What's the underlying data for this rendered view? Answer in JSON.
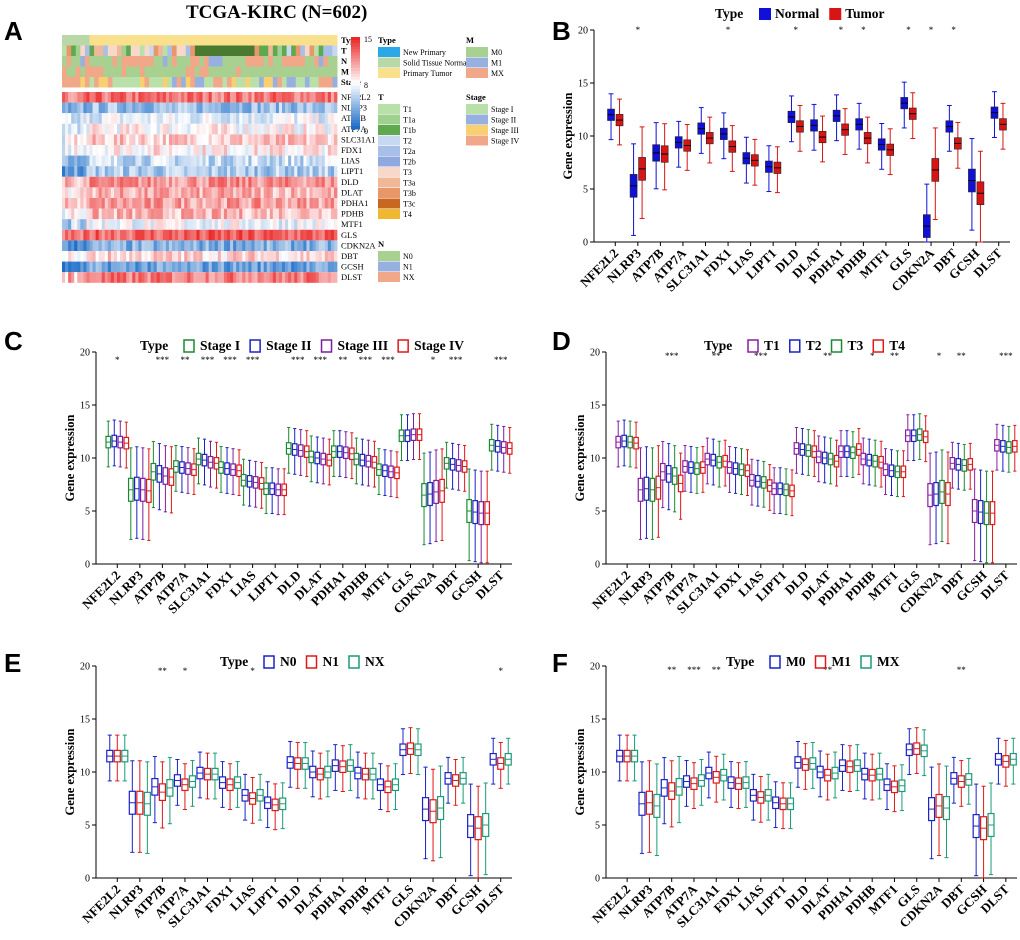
{
  "panel_labels": [
    "A",
    "B",
    "C",
    "D",
    "E",
    "F"
  ],
  "colors": {
    "Normal": "#1010d8",
    "Tumor": "#d81414",
    "Stage I": "#1a8a30",
    "Stage II": "#1a22c8",
    "Stage III": "#7a1fa0",
    "Stage IV": "#e01818",
    "T1": "#8a1fa0",
    "T2": "#1a22c8",
    "T3": "#1a8a30",
    "T4": "#e01818",
    "N0": "#1a22c8",
    "N1": "#e01818",
    "NX": "#1a9c78",
    "M0": "#1a22c8",
    "M1": "#e01818",
    "MX": "#1a9c78"
  },
  "heatmap": {
    "title": "TCGA-KIRC (N=602)",
    "annotation_rows": [
      "Type",
      "T",
      "N",
      "M",
      "Stage"
    ],
    "genes": [
      "NFE2L2",
      "NLRP3",
      "ATP7B",
      "ATP7A",
      "SLC31A1",
      "FDX1",
      "LIAS",
      "LIPT1",
      "DLD",
      "DLAT",
      "PDHA1",
      "PDHB",
      "MTF1",
      "GLS",
      "CDKN2A",
      "DBT",
      "GCSH",
      "DLST"
    ],
    "colorbar_ticks": [
      "15",
      "8",
      "0"
    ],
    "legend_groups": [
      {
        "title": "Type",
        "items": [
          {
            "label": "New Primary",
            "color": "#2aa8e8"
          },
          {
            "label": "Solid Tissue Normal",
            "color": "#b8d8a8"
          },
          {
            "label": "Primary Tumor",
            "color": "#f8e08c"
          }
        ]
      },
      {
        "title": "M",
        "items": [
          {
            "label": "M0",
            "color": "#a8d090"
          },
          {
            "label": "M1",
            "color": "#98b0e0"
          },
          {
            "label": "MX",
            "color": "#f0a888"
          }
        ]
      },
      {
        "title": "T",
        "items": [
          {
            "label": "T1",
            "color": "#b8e0a8"
          },
          {
            "label": "T1a",
            "color": "#a0d090"
          },
          {
            "label": "T1b",
            "color": "#60a850"
          },
          {
            "label": "T2",
            "color": "#c8d8f0"
          },
          {
            "label": "T2a",
            "color": "#a8c0e8"
          },
          {
            "label": "T2b",
            "color": "#90a8e0"
          },
          {
            "label": "T3",
            "color": "#f8d8c8"
          },
          {
            "label": "T3a",
            "color": "#f0b898"
          },
          {
            "label": "T3b",
            "color": "#e89868"
          },
          {
            "label": "T3c",
            "color": "#c86820"
          },
          {
            "label": "T4",
            "color": "#f0b830"
          }
        ]
      },
      {
        "title": "Stage",
        "items": [
          {
            "label": "Stage I",
            "color": "#b8e0a8"
          },
          {
            "label": "Stage II",
            "color": "#98b0e0"
          },
          {
            "label": "Stage III",
            "color": "#f8d070"
          },
          {
            "label": "Stage IV",
            "color": "#f0a888"
          }
        ]
      },
      {
        "title": "N",
        "items": [
          {
            "label": "N0",
            "color": "#a8d090"
          },
          {
            "label": "N1",
            "color": "#98b0e0"
          },
          {
            "label": "NX",
            "color": "#f0a888"
          }
        ]
      }
    ]
  },
  "chart_data": [
    {
      "panel": "B",
      "type": "box",
      "legend_title": "Type",
      "groups": [
        "Normal",
        "Tumor"
      ],
      "ylabel": "Gene expression",
      "ylim": [
        0,
        20
      ],
      "yticks": [
        0,
        5,
        10,
        15,
        20
      ],
      "categories": [
        "NFE2L2",
        "NLRP3",
        "ATP7B",
        "ATP7A",
        "SLC31A1",
        "FDX1",
        "LIAS",
        "LIPT1",
        "DLD",
        "DLAT",
        "PDHA1",
        "PDHB",
        "MTF1",
        "GLS",
        "CDKN2A",
        "DBT",
        "GCSH",
        "DLST"
      ],
      "significance": [
        "",
        "*",
        "",
        "",
        "",
        "*",
        "",
        "",
        "*",
        "",
        "*",
        "*",
        "",
        "*",
        "*",
        "*",
        "",
        ""
      ],
      "medians": [
        [
          12,
          11.5
        ],
        [
          5.3,
          6.9
        ],
        [
          8.4,
          8.3
        ],
        [
          9.4,
          9.1
        ],
        [
          10.7,
          9.8
        ],
        [
          10.2,
          9.0
        ],
        [
          7.9,
          7.7
        ],
        [
          7.1,
          7.0
        ],
        [
          11.8,
          10.9
        ],
        [
          11.0,
          9.9
        ],
        [
          11.9,
          10.6
        ],
        [
          11.1,
          9.8
        ],
        [
          9.2,
          8.7
        ],
        [
          13.1,
          12.1
        ],
        [
          1.5,
          6.8
        ],
        [
          10.9,
          9.3
        ],
        [
          5.8,
          4.6
        ],
        [
          12.2,
          11.1
        ]
      ]
    },
    {
      "panel": "C",
      "type": "box",
      "legend_title": "Type",
      "groups": [
        "Stage I",
        "Stage II",
        "Stage III",
        "Stage IV"
      ],
      "ylabel": "Gene expression",
      "ylim": [
        0,
        20
      ],
      "yticks": [
        0,
        5,
        10,
        15,
        20
      ],
      "categories": [
        "NFE2L2",
        "NLRP3",
        "ATP7B",
        "ATP7A",
        "SLC31A1",
        "FDX1",
        "LIAS",
        "LIPT1",
        "DLD",
        "DLAT",
        "PDHA1",
        "PDHB",
        "MTF1",
        "GLS",
        "CDKN2A",
        "DBT",
        "GCSH",
        "DLST"
      ],
      "significance": [
        "*",
        "",
        "***",
        "**",
        "***",
        "***",
        "***",
        "",
        "***",
        "***",
        "**",
        "***",
        "***",
        "",
        "*",
        "***",
        "",
        "***"
      ],
      "medians": [
        [
          11.5,
          11.6,
          11.5,
          11.4
        ],
        [
          7,
          7.1,
          7,
          6.9
        ],
        [
          8.7,
          8.5,
          8.3,
          8.2
        ],
        [
          9.2,
          9.1,
          9,
          8.9
        ],
        [
          9.9,
          9.8,
          9.6,
          9.5
        ],
        [
          9.1,
          9,
          8.9,
          8.8
        ],
        [
          7.9,
          7.8,
          7.7,
          7.6
        ],
        [
          7.1,
          7.1,
          7,
          7
        ],
        [
          10.9,
          10.8,
          10.7,
          10.6
        ],
        [
          10.1,
          10,
          9.9,
          9.8
        ],
        [
          10.6,
          10.6,
          10.5,
          10.4
        ],
        [
          9.9,
          9.8,
          9.7,
          9.6
        ],
        [
          8.9,
          8.8,
          8.7,
          8.6
        ],
        [
          12.1,
          12.1,
          12.2,
          12.2
        ],
        [
          6.5,
          6.6,
          6.8,
          6.9
        ],
        [
          9.5,
          9.4,
          9.3,
          9.2
        ],
        [
          5,
          4.9,
          4.8,
          4.8
        ],
        [
          11.2,
          11.1,
          11,
          10.9
        ]
      ]
    },
    {
      "panel": "D",
      "type": "box",
      "legend_title": "Type",
      "groups": [
        "T1",
        "T2",
        "T3",
        "T4"
      ],
      "ylabel": "Gene expression",
      "ylim": [
        0,
        20
      ],
      "yticks": [
        0,
        5,
        10,
        15,
        20
      ],
      "categories": [
        "NFE2L2",
        "NLRP3",
        "ATP7B",
        "ATP7A",
        "SLC31A1",
        "FDX1",
        "LIAS",
        "LIPT1",
        "DLD",
        "DLAT",
        "PDHA1",
        "PDHB",
        "MTF1",
        "GLS",
        "CDKN2A",
        "DBT",
        "GCSH",
        "DLST"
      ],
      "significance": [
        "",
        "",
        "***",
        "",
        "**",
        "",
        "***",
        "",
        "",
        "**",
        "",
        "*",
        "**",
        "",
        "*",
        "**",
        "",
        "***"
      ],
      "medians": [
        [
          11.5,
          11.6,
          11.5,
          11.4
        ],
        [
          7,
          7.1,
          7,
          7.2
        ],
        [
          8.7,
          8.5,
          8.3,
          7.6
        ],
        [
          9.2,
          9.1,
          9,
          9.1
        ],
        [
          9.9,
          9.8,
          9.6,
          9.7
        ],
        [
          9.1,
          9,
          8.9,
          8.8
        ],
        [
          7.9,
          7.8,
          7.7,
          7.4
        ],
        [
          7.1,
          7.1,
          7,
          6.9
        ],
        [
          10.9,
          10.8,
          10.7,
          10.6
        ],
        [
          10.1,
          10,
          9.9,
          9.7
        ],
        [
          10.6,
          10.6,
          10.5,
          10.8
        ],
        [
          9.9,
          9.8,
          9.7,
          9.6
        ],
        [
          8.9,
          8.8,
          8.7,
          8.7
        ],
        [
          12.1,
          12.1,
          12.2,
          12
        ],
        [
          6.5,
          6.6,
          6.8,
          6.6
        ],
        [
          9.5,
          9.4,
          9.3,
          9.4
        ],
        [
          5,
          4.9,
          4.8,
          4.8
        ],
        [
          11.2,
          11.1,
          11,
          11.1
        ]
      ]
    },
    {
      "panel": "E",
      "type": "box",
      "legend_title": "Type",
      "groups": [
        "N0",
        "N1",
        "NX"
      ],
      "ylabel": "Gene expression",
      "ylim": [
        0,
        20
      ],
      "yticks": [
        0,
        5,
        10,
        15,
        20
      ],
      "categories": [
        "NFE2L2",
        "NLRP3",
        "ATP7B",
        "ATP7A",
        "SLC31A1",
        "FDX1",
        "LIAS",
        "LIPT1",
        "DLD",
        "DLAT",
        "PDHA1",
        "PDHB",
        "MTF1",
        "GLS",
        "CDKN2A",
        "DBT",
        "GCSH",
        "DLST"
      ],
      "significance": [
        "",
        "",
        "**",
        "*",
        "",
        "",
        "*",
        "",
        "",
        "",
        "",
        "",
        "",
        "",
        "",
        "",
        "",
        "*"
      ],
      "medians": [
        [
          11.5,
          11.5,
          11.5
        ],
        [
          7.1,
          7.1,
          7
        ],
        [
          8.6,
          8.1,
          8.5
        ],
        [
          9.2,
          8.8,
          9.1
        ],
        [
          9.9,
          9.8,
          9.8
        ],
        [
          9,
          8.8,
          9
        ],
        [
          7.8,
          7.5,
          7.8
        ],
        [
          7.1,
          6.9,
          7
        ],
        [
          10.9,
          10.8,
          10.8
        ],
        [
          10,
          9.8,
          10
        ],
        [
          10.6,
          10.5,
          10.6
        ],
        [
          9.9,
          9.8,
          9.8
        ],
        [
          8.8,
          8.6,
          8.8
        ],
        [
          12.1,
          12.2,
          12.1
        ],
        [
          6.5,
          6.3,
          6.6
        ],
        [
          9.4,
          9.2,
          9.4
        ],
        [
          4.9,
          4.7,
          5
        ],
        [
          11.2,
          10.8,
          11.2
        ]
      ]
    },
    {
      "panel": "F",
      "type": "box",
      "legend_title": "Type",
      "groups": [
        "M0",
        "M1",
        "MX"
      ],
      "ylabel": "Gene expression",
      "ylim": [
        0,
        20
      ],
      "yticks": [
        0,
        5,
        10,
        15,
        20
      ],
      "categories": [
        "NFE2L2",
        "NLRP3",
        "ATP7B",
        "ATP7A",
        "SLC31A1",
        "FDX1",
        "LIAS",
        "LIPT1",
        "DLD",
        "DLAT",
        "PDHA1",
        "PDHB",
        "MTF1",
        "GLS",
        "CDKN2A",
        "DBT",
        "GCSH",
        "DLST"
      ],
      "significance": [
        "",
        "",
        "**",
        "***",
        "**",
        "",
        "",
        "",
        "",
        "**",
        "",
        "",
        "",
        "",
        "",
        "**",
        "",
        ""
      ],
      "medians": [
        [
          11.5,
          11.5,
          11.5
        ],
        [
          7,
          7.1,
          6.8
        ],
        [
          8.5,
          8.2,
          8.6
        ],
        [
          9.1,
          8.9,
          9.2
        ],
        [
          9.9,
          9.5,
          9.7
        ],
        [
          9,
          8.9,
          9
        ],
        [
          7.8,
          7.6,
          7.8
        ],
        [
          7.1,
          7,
          7
        ],
        [
          10.9,
          10.7,
          10.8
        ],
        [
          10,
          9.7,
          9.9
        ],
        [
          10.6,
          10.5,
          10.6
        ],
        [
          9.8,
          9.7,
          9.8
        ],
        [
          8.8,
          8.6,
          8.7
        ],
        [
          12.1,
          12.2,
          12
        ],
        [
          6.5,
          6.8,
          6.6
        ],
        [
          9.4,
          9.1,
          9.3
        ],
        [
          4.9,
          4.7,
          5
        ],
        [
          11.2,
          11,
          11.2
        ]
      ]
    }
  ]
}
